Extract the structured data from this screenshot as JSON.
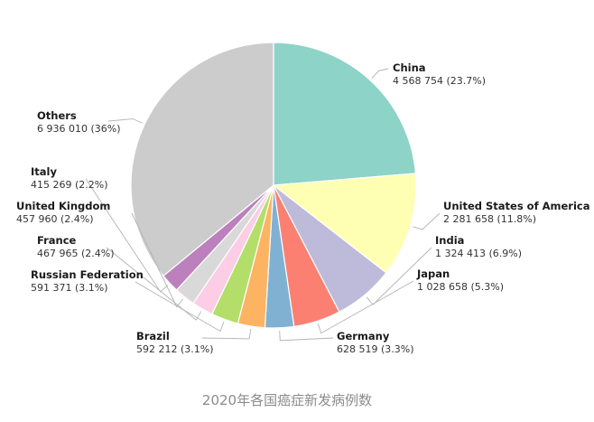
{
  "chart_data": {
    "type": "pie",
    "caption": "2020年各国癌症新发病例数",
    "start_angle_deg": 0,
    "direction": "clockwise",
    "slices": [
      {
        "name": "China",
        "value": 4568754,
        "value_text": "4 568 754 (23.7%)",
        "percent": 23.7,
        "color": "#8dd3c7"
      },
      {
        "name": "United States of America",
        "value": 2281658,
        "value_text": "2 281 658 (11.8%)",
        "percent": 11.8,
        "color": "#ffffb3"
      },
      {
        "name": "India",
        "value": 1324413,
        "value_text": "1 324 413 (6.9%)",
        "percent": 6.9,
        "color": "#bebada"
      },
      {
        "name": "Japan",
        "value": 1028658,
        "value_text": "1 028 658 (5.3%)",
        "percent": 5.3,
        "color": "#fb8072"
      },
      {
        "name": "Germany",
        "value": 628519,
        "value_text": "628 519 (3.3%)",
        "percent": 3.3,
        "color": "#80b1d3"
      },
      {
        "name": "Brazil",
        "value": 592212,
        "value_text": "592 212 (3.1%)",
        "percent": 3.1,
        "color": "#fdb462"
      },
      {
        "name": "Russian Federation",
        "value": 591371,
        "value_text": "591 371 (3.1%)",
        "percent": 3.1,
        "color": "#b3de69"
      },
      {
        "name": "France",
        "value": 467965,
        "value_text": "467 965 (2.4%)",
        "percent": 2.4,
        "color": "#fccde5"
      },
      {
        "name": "United Kingdom",
        "value": 457960,
        "value_text": "457 960 (2.4%)",
        "percent": 2.4,
        "color": "#d9d9d9"
      },
      {
        "name": "Italy",
        "value": 415269,
        "value_text": "415 269 (2.2%)",
        "percent": 2.2,
        "color": "#bc80bd"
      },
      {
        "name": "Others",
        "value": 6936010,
        "value_text": "6 936 010 (36%)",
        "percent": 36,
        "color": "#cccccc"
      }
    ]
  }
}
